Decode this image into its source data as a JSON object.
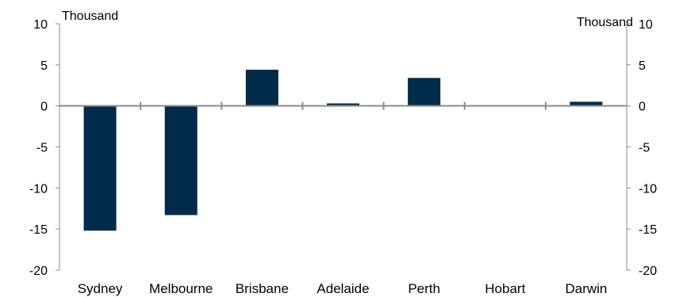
{
  "chart_data": {
    "type": "bar",
    "categories": [
      "Sydney",
      "Melbourne",
      "Brisbane",
      "Adelaide",
      "Perth",
      "Hobart",
      "Darwin"
    ],
    "values": [
      -15.2,
      -13.3,
      4.4,
      0.3,
      3.4,
      0.0,
      0.5
    ],
    "ylim": [
      -20,
      10
    ],
    "yticks": [
      10,
      5,
      0,
      -5,
      -10,
      -15,
      -20
    ],
    "ylabel_left": "Thousand",
    "ylabel_right": "Thousand",
    "grid": false,
    "bar_color": "#002b49",
    "axis_color": "#8c8c8c"
  }
}
